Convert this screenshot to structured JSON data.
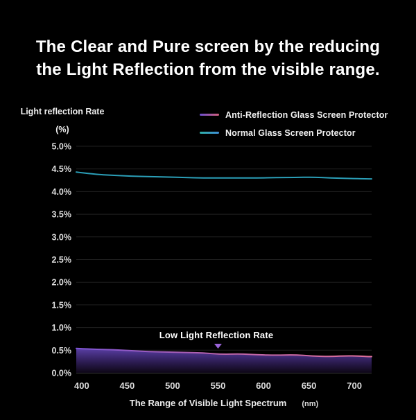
{
  "title": {
    "line1": "The Clear and Pure screen by the reducing",
    "line2": "the Light Reflection from the visible range."
  },
  "legend": {
    "items": [
      {
        "label": "Anti-Reflection Glass Screen Protector",
        "swatch_gradient": [
          "#6a4fd0",
          "#d4607c"
        ]
      },
      {
        "label": "Normal Glass Screen Protector",
        "swatch_gradient": [
          "#2fb0a8",
          "#3f8fd8"
        ]
      }
    ]
  },
  "colors": {
    "background": "#000000",
    "title_text": "#ffffff",
    "grid": "#202020",
    "baseline": "#4f4f4f",
    "tick_label": "#dddddd",
    "axis_label": "#eeeeee"
  },
  "chart_data": {
    "type": "area",
    "title": "",
    "xlabel": "The Range of Visible Light Spectrum",
    "xlabel_unit": "(nm)",
    "ylabel": "Light reflection Rate",
    "ylabel_unit": "(%)",
    "xlim": [
      394,
      719
    ],
    "ylim": [
      0,
      5
    ],
    "grid": "horizontal-only",
    "legend_position": "top-right",
    "x_ticks": [
      400,
      450,
      500,
      550,
      600,
      650,
      700
    ],
    "y_ticks": [
      "5.0%",
      "4.5%",
      "4.0%",
      "3.5%",
      "3.0%",
      "2.5%",
      "2.0%",
      "1.5%",
      "1.0%",
      "0.5%",
      "0.0%"
    ],
    "y_tick_values": [
      5.0,
      4.5,
      4.0,
      3.5,
      3.0,
      2.5,
      2.0,
      1.5,
      1.0,
      0.5,
      0.0
    ],
    "x": [
      394,
      414,
      434,
      454,
      474,
      494,
      514,
      534,
      554,
      574,
      594,
      614,
      634,
      654,
      674,
      694,
      714,
      719
    ],
    "series": [
      {
        "name": "Anti-Reflection Glass Screen Protector",
        "values": [
          0.54,
          0.52,
          0.51,
          0.49,
          0.47,
          0.46,
          0.45,
          0.44,
          0.41,
          0.42,
          0.4,
          0.39,
          0.4,
          0.37,
          0.36,
          0.38,
          0.36,
          0.36
        ],
        "area": true,
        "line_gradient": [
          "#7e55d6",
          "#b862a8",
          "#e0719c"
        ],
        "fill_gradient": [
          "#5e42ad",
          "#352263",
          "#0e0818"
        ]
      },
      {
        "name": "Normal Glass Screen Protector",
        "values": [
          4.43,
          4.38,
          4.36,
          4.34,
          4.33,
          4.32,
          4.31,
          4.3,
          4.3,
          4.3,
          4.3,
          4.31,
          4.31,
          4.32,
          4.3,
          4.29,
          4.28,
          4.28
        ],
        "area": false,
        "color": "#2b9fb8"
      }
    ],
    "annotation": {
      "label": "Low Light Reflection Rate",
      "marker": "triangle-down",
      "x_nm": 550,
      "tip_pct": 0.535,
      "color": "#9a63d8"
    }
  }
}
